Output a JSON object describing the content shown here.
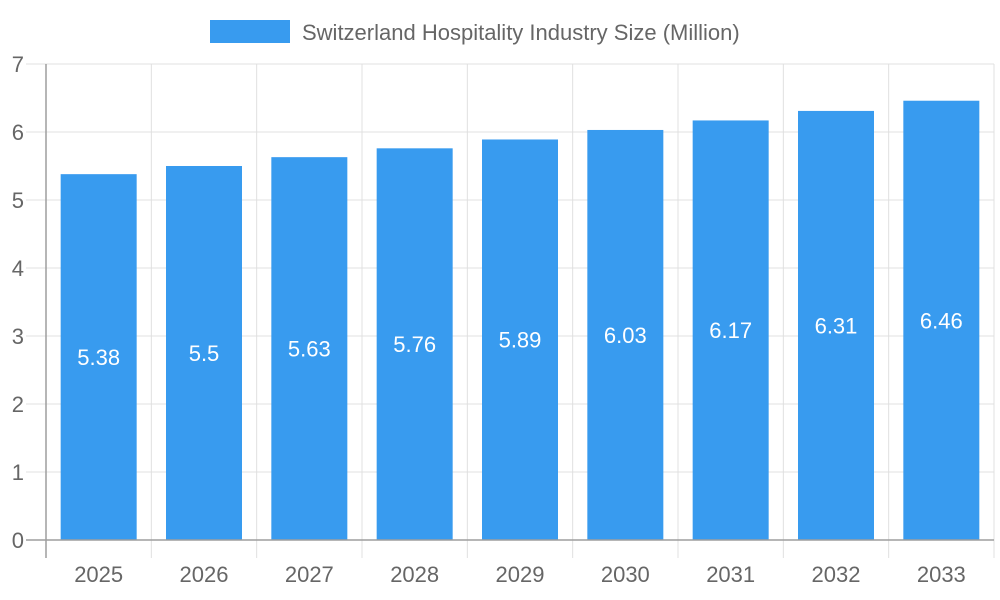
{
  "chart_data": {
    "type": "bar",
    "categories": [
      "2025",
      "2026",
      "2027",
      "2028",
      "2029",
      "2030",
      "2031",
      "2032",
      "2033"
    ],
    "series": [
      {
        "name": "Switzerland Hospitality Industry Size (Million)",
        "values": [
          5.38,
          5.5,
          5.63,
          5.76,
          5.89,
          6.03,
          6.17,
          6.31,
          6.46
        ]
      }
    ],
    "data_labels": [
      "5.38",
      "5.5",
      "5.63",
      "5.76",
      "5.89",
      "6.03",
      "6.17",
      "6.31",
      "6.46"
    ],
    "y_ticks": [
      "0",
      "1",
      "2",
      "3",
      "4",
      "5",
      "6",
      "7"
    ],
    "ylim": [
      0,
      7
    ],
    "grid": true,
    "legend": "top-center",
    "colors": {
      "bar": "#389BEF",
      "grid": "#e0e0e0",
      "axis": "#9e9e9e",
      "text": "#666666",
      "label": "#ffffff"
    }
  }
}
